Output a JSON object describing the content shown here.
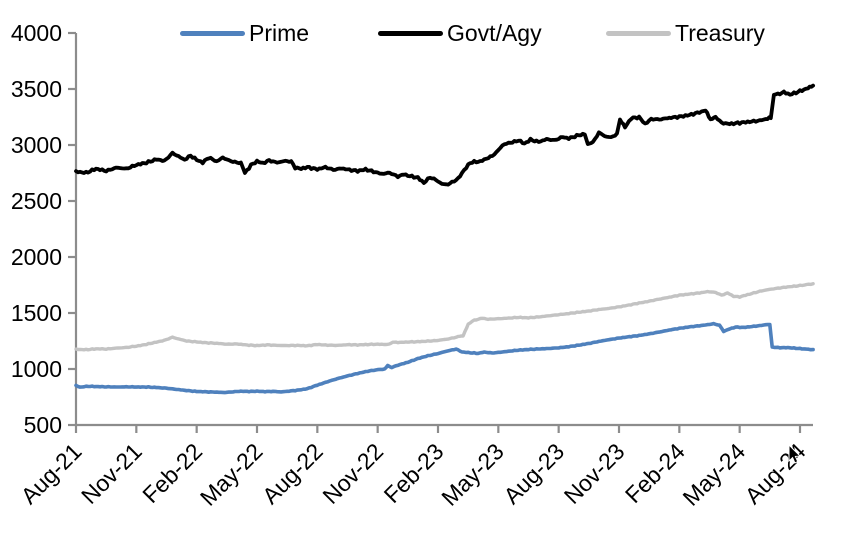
{
  "page": {
    "background": "#ffffff"
  },
  "chart_data": {
    "type": "line",
    "title": "",
    "xlabel": "",
    "ylabel": "",
    "grid": false,
    "legend_position": "top",
    "axis_color": "#8c8c8c",
    "tick_label_color": "#000000",
    "ylim": [
      500,
      4000
    ],
    "y_ticks": [
      500,
      1000,
      1500,
      2000,
      2500,
      3000,
      3500,
      4000
    ],
    "x_tick_labels": [
      "Aug-21",
      "Nov-21",
      "Feb-22",
      "May-22",
      "Aug-22",
      "Nov-22",
      "Feb-23",
      "May-23",
      "Aug-23",
      "Nov-23",
      "Feb-24",
      "May-24",
      "Aug-24"
    ],
    "x_unit": "months-since-Aug-21",
    "series": [
      {
        "name": "Prime",
        "color": "#4f81bd",
        "line_width": 3.6,
        "noise": 3,
        "points": [
          [
            0,
            852
          ],
          [
            0.2,
            838
          ],
          [
            0.6,
            846
          ],
          [
            1,
            843
          ],
          [
            1.5,
            841
          ],
          [
            2,
            839
          ],
          [
            2.5,
            841
          ],
          [
            3,
            839
          ],
          [
            3.5,
            839
          ],
          [
            4,
            835
          ],
          [
            4.5,
            828
          ],
          [
            5,
            818
          ],
          [
            5.5,
            808
          ],
          [
            6,
            799
          ],
          [
            6.5,
            796
          ],
          [
            7,
            793
          ],
          [
            7.4,
            790
          ],
          [
            7.8,
            796
          ],
          [
            8.2,
            802
          ],
          [
            8.6,
            799
          ],
          [
            9,
            802
          ],
          [
            9.4,
            798
          ],
          [
            9.8,
            800
          ],
          [
            10.2,
            796
          ],
          [
            10.6,
            802
          ],
          [
            11,
            810
          ],
          [
            11.5,
            824
          ],
          [
            12,
            856
          ],
          [
            12.5,
            886
          ],
          [
            13,
            914
          ],
          [
            13.5,
            938
          ],
          [
            14,
            960
          ],
          [
            14.5,
            980
          ],
          [
            15,
            994
          ],
          [
            15.35,
            1000
          ],
          [
            15.5,
            1030
          ],
          [
            15.7,
            1014
          ],
          [
            16,
            1034
          ],
          [
            16.5,
            1060
          ],
          [
            17,
            1093
          ],
          [
            17.5,
            1118
          ],
          [
            18,
            1138
          ],
          [
            18.5,
            1162
          ],
          [
            18.9,
            1178
          ],
          [
            19.2,
            1152
          ],
          [
            19.6,
            1145
          ],
          [
            20,
            1140
          ],
          [
            20.3,
            1151
          ],
          [
            20.7,
            1143
          ],
          [
            21,
            1148
          ],
          [
            21.5,
            1158
          ],
          [
            22,
            1168
          ],
          [
            22.5,
            1174
          ],
          [
            23,
            1179
          ],
          [
            23.5,
            1183
          ],
          [
            24,
            1189
          ],
          [
            24.5,
            1199
          ],
          [
            25,
            1213
          ],
          [
            25.5,
            1228
          ],
          [
            26,
            1246
          ],
          [
            26.5,
            1262
          ],
          [
            27,
            1276
          ],
          [
            27.5,
            1288
          ],
          [
            28,
            1299
          ],
          [
            28.5,
            1314
          ],
          [
            29,
            1330
          ],
          [
            29.5,
            1348
          ],
          [
            30,
            1363
          ],
          [
            30.5,
            1376
          ],
          [
            31,
            1386
          ],
          [
            31.4,
            1396
          ],
          [
            31.7,
            1404
          ],
          [
            32,
            1390
          ],
          [
            32.2,
            1336
          ],
          [
            32.5,
            1358
          ],
          [
            32.8,
            1374
          ],
          [
            33.2,
            1371
          ],
          [
            33.6,
            1379
          ],
          [
            34,
            1387
          ],
          [
            34.3,
            1396
          ],
          [
            34.5,
            1397
          ],
          [
            34.62,
            1196
          ],
          [
            35,
            1190
          ],
          [
            35.4,
            1191
          ],
          [
            35.8,
            1185
          ],
          [
            36.2,
            1179
          ],
          [
            36.65,
            1173
          ]
        ]
      },
      {
        "name": "Govt/Agy",
        "color": "#000000",
        "line_width": 3.8,
        "noise": 10,
        "points": [
          [
            0,
            2762
          ],
          [
            0.5,
            2752
          ],
          [
            1,
            2788
          ],
          [
            1.5,
            2768
          ],
          [
            2,
            2798
          ],
          [
            2.5,
            2788
          ],
          [
            3,
            2822
          ],
          [
            3.5,
            2842
          ],
          [
            4,
            2872
          ],
          [
            4.4,
            2858
          ],
          [
            4.8,
            2928
          ],
          [
            5.1,
            2898
          ],
          [
            5.4,
            2868
          ],
          [
            5.7,
            2905
          ],
          [
            6,
            2868
          ],
          [
            6.3,
            2843
          ],
          [
            6.6,
            2888
          ],
          [
            7,
            2853
          ],
          [
            7.3,
            2888
          ],
          [
            7.6,
            2862
          ],
          [
            8,
            2843
          ],
          [
            8.2,
            2840
          ],
          [
            8.4,
            2750
          ],
          [
            8.7,
            2820
          ],
          [
            9,
            2855
          ],
          [
            9.3,
            2838
          ],
          [
            9.6,
            2862
          ],
          [
            10,
            2843
          ],
          [
            10.4,
            2858
          ],
          [
            10.7,
            2852
          ],
          [
            10.9,
            2798
          ],
          [
            11.2,
            2788
          ],
          [
            11.5,
            2802
          ],
          [
            12,
            2783
          ],
          [
            12.4,
            2802
          ],
          [
            12.8,
            2778
          ],
          [
            13.2,
            2792
          ],
          [
            13.6,
            2778
          ],
          [
            14,
            2768
          ],
          [
            14.4,
            2782
          ],
          [
            14.8,
            2762
          ],
          [
            15.2,
            2742
          ],
          [
            15.6,
            2752
          ],
          [
            16,
            2718
          ],
          [
            16.3,
            2738
          ],
          [
            16.6,
            2722
          ],
          [
            17,
            2708
          ],
          [
            17.3,
            2662
          ],
          [
            17.6,
            2712
          ],
          [
            17.9,
            2688
          ],
          [
            18.2,
            2652
          ],
          [
            18.5,
            2648
          ],
          [
            18.8,
            2678
          ],
          [
            19,
            2698
          ],
          [
            19.2,
            2752
          ],
          [
            19.4,
            2798
          ],
          [
            19.6,
            2842
          ],
          [
            19.8,
            2848
          ],
          [
            20.1,
            2853
          ],
          [
            20.4,
            2878
          ],
          [
            20.7,
            2902
          ],
          [
            21,
            2952
          ],
          [
            21.2,
            2998
          ],
          [
            21.5,
            3018
          ],
          [
            21.8,
            3028
          ],
          [
            22,
            3042
          ],
          [
            22.3,
            3012
          ],
          [
            22.6,
            3048
          ],
          [
            23,
            3028
          ],
          [
            23.4,
            3052
          ],
          [
            23.8,
            3042
          ],
          [
            24.2,
            3072
          ],
          [
            24.5,
            3058
          ],
          [
            25,
            3088
          ],
          [
            25.3,
            3098
          ],
          [
            25.45,
            3008
          ],
          [
            25.7,
            3022
          ],
          [
            26,
            3112
          ],
          [
            26.3,
            3078
          ],
          [
            26.6,
            3068
          ],
          [
            26.9,
            3098
          ],
          [
            27.05,
            3228
          ],
          [
            27.3,
            3158
          ],
          [
            27.6,
            3238
          ],
          [
            28,
            3248
          ],
          [
            28.3,
            3188
          ],
          [
            28.6,
            3232
          ],
          [
            29,
            3228
          ],
          [
            29.5,
            3242
          ],
          [
            30,
            3252
          ],
          [
            30.5,
            3268
          ],
          [
            31,
            3292
          ],
          [
            31.3,
            3308
          ],
          [
            31.55,
            3228
          ],
          [
            31.8,
            3252
          ],
          [
            32.1,
            3198
          ],
          [
            32.5,
            3188
          ],
          [
            33,
            3198
          ],
          [
            33.5,
            3208
          ],
          [
            34,
            3218
          ],
          [
            34.3,
            3232
          ],
          [
            34.55,
            3242
          ],
          [
            34.7,
            3448
          ],
          [
            35,
            3458
          ],
          [
            35.2,
            3472
          ],
          [
            35.5,
            3450
          ],
          [
            35.8,
            3468
          ],
          [
            36.1,
            3488
          ],
          [
            36.4,
            3508
          ],
          [
            36.65,
            3528
          ]
        ]
      },
      {
        "name": "Treasury",
        "color": "#c3c3c3",
        "line_width": 3.4,
        "noise": 4,
        "points": [
          [
            0,
            1176
          ],
          [
            0.5,
            1172
          ],
          [
            1,
            1180
          ],
          [
            1.5,
            1178
          ],
          [
            2,
            1186
          ],
          [
            2.5,
            1192
          ],
          [
            3,
            1204
          ],
          [
            3.5,
            1220
          ],
          [
            4,
            1240
          ],
          [
            4.4,
            1256
          ],
          [
            4.8,
            1284
          ],
          [
            5.1,
            1268
          ],
          [
            5.5,
            1250
          ],
          [
            6,
            1242
          ],
          [
            6.5,
            1234
          ],
          [
            7,
            1229
          ],
          [
            7.5,
            1221
          ],
          [
            8,
            1224
          ],
          [
            8.5,
            1214
          ],
          [
            9,
            1209
          ],
          [
            9.5,
            1215
          ],
          [
            10,
            1211
          ],
          [
            10.5,
            1209
          ],
          [
            11,
            1211
          ],
          [
            11.5,
            1207
          ],
          [
            12,
            1219
          ],
          [
            12.5,
            1213
          ],
          [
            13,
            1211
          ],
          [
            13.5,
            1217
          ],
          [
            14,
            1215
          ],
          [
            14.5,
            1219
          ],
          [
            15,
            1221
          ],
          [
            15.5,
            1219
          ],
          [
            15.75,
            1239
          ],
          [
            16,
            1237
          ],
          [
            16.5,
            1241
          ],
          [
            17,
            1244
          ],
          [
            17.5,
            1249
          ],
          [
            18,
            1255
          ],
          [
            18.5,
            1268
          ],
          [
            19,
            1288
          ],
          [
            19.25,
            1298
          ],
          [
            19.5,
            1398
          ],
          [
            19.7,
            1428
          ],
          [
            19.9,
            1440
          ],
          [
            20.2,
            1454
          ],
          [
            20.5,
            1444
          ],
          [
            21,
            1449
          ],
          [
            21.5,
            1454
          ],
          [
            22,
            1461
          ],
          [
            22.5,
            1457
          ],
          [
            23,
            1465
          ],
          [
            23.5,
            1475
          ],
          [
            24,
            1485
          ],
          [
            24.5,
            1495
          ],
          [
            25,
            1507
          ],
          [
            25.5,
            1517
          ],
          [
            26,
            1531
          ],
          [
            26.5,
            1541
          ],
          [
            27,
            1555
          ],
          [
            27.5,
            1571
          ],
          [
            28,
            1589
          ],
          [
            28.5,
            1605
          ],
          [
            29,
            1624
          ],
          [
            29.5,
            1641
          ],
          [
            30,
            1659
          ],
          [
            30.5,
            1669
          ],
          [
            31,
            1679
          ],
          [
            31.4,
            1691
          ],
          [
            31.8,
            1684
          ],
          [
            32.1,
            1659
          ],
          [
            32.4,
            1679
          ],
          [
            32.7,
            1649
          ],
          [
            33,
            1644
          ],
          [
            33.4,
            1664
          ],
          [
            34,
            1694
          ],
          [
            34.5,
            1711
          ],
          [
            35,
            1724
          ],
          [
            35.5,
            1735
          ],
          [
            36,
            1745
          ],
          [
            36.65,
            1761
          ]
        ]
      }
    ]
  }
}
